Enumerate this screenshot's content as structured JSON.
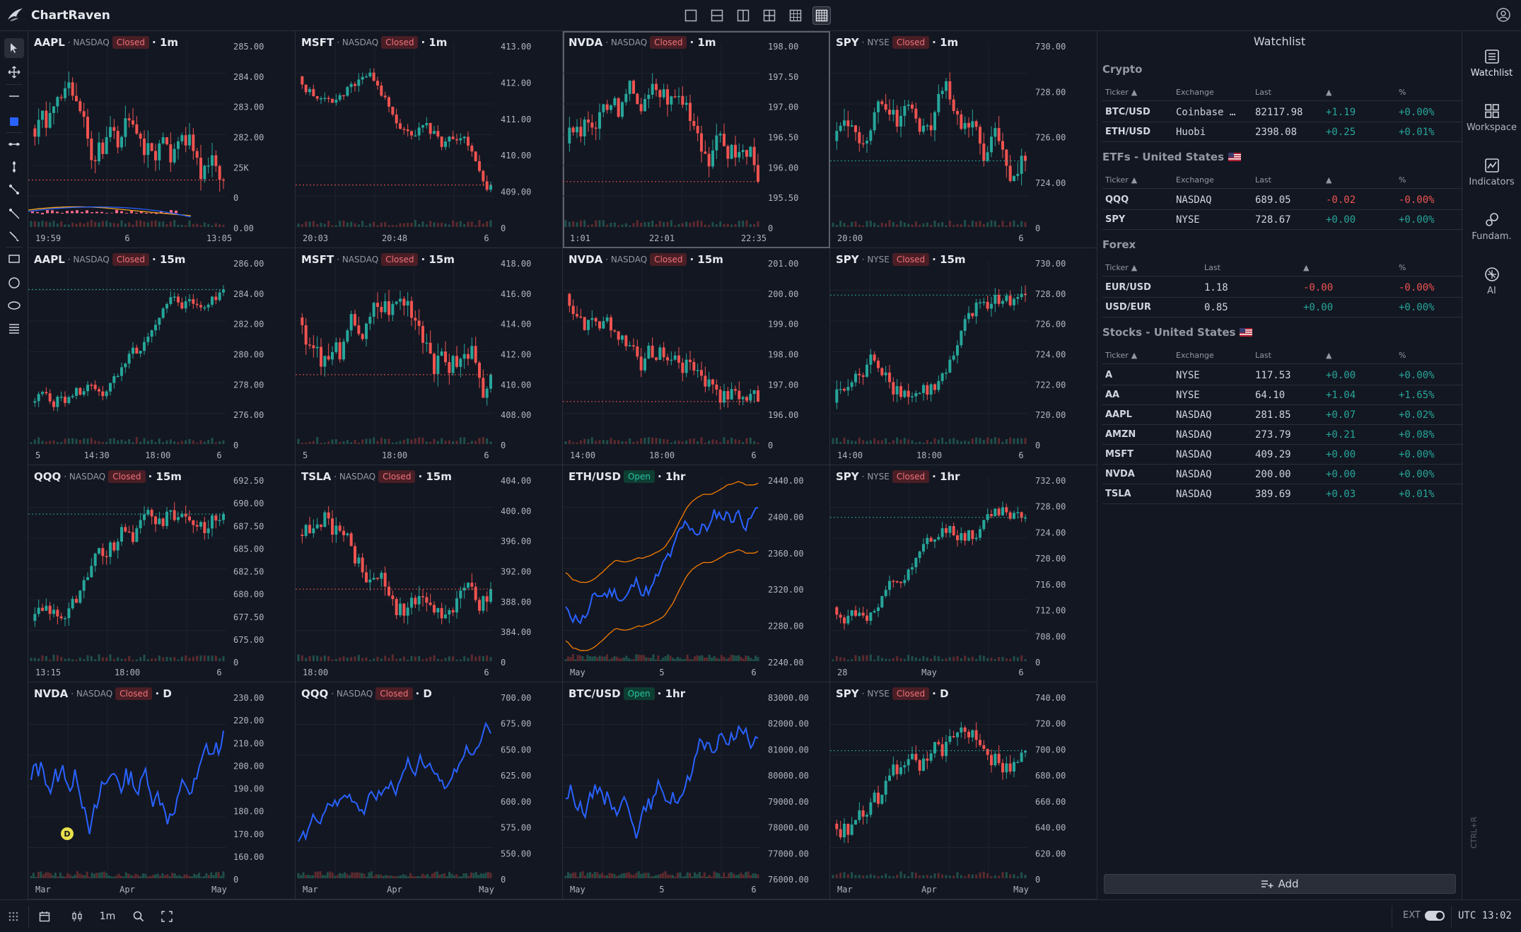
{
  "app": {
    "name": "ChartRaven"
  },
  "layouts": [
    "1x1",
    "2-rows",
    "2-cols",
    "2x2",
    "3x3",
    "4x4"
  ],
  "left_tools": [
    "cursor-icon",
    "move-icon",
    "line-icon",
    "color-swatch-icon",
    "horizontal-line-icon",
    "vertical-line-icon",
    "trend-line-icon",
    "ray-icon",
    "brush-icon",
    "rectangle-icon",
    "circle-icon",
    "ellipse-icon",
    "menu-lines-icon"
  ],
  "charts": [
    {
      "sym": "AAPL",
      "ex": "NASDAQ",
      "status": "Closed",
      "tf": "1m",
      "type": "candle",
      "yticks": [
        "285.00",
        "284.00",
        "283.00",
        "282.00",
        "25K",
        "0",
        "0.00"
      ],
      "xticks": [
        "19:59",
        "6",
        "13:05"
      ],
      "seed": 1,
      "trend": -0.8,
      "extra": "macd"
    },
    {
      "sym": "MSFT",
      "ex": "NASDAQ",
      "status": "Closed",
      "tf": "1m",
      "type": "candle",
      "yticks": [
        "413.00",
        "412.00",
        "411.00",
        "410.00",
        "409.00",
        "0"
      ],
      "xticks": [
        "20:03",
        "20:48",
        "6"
      ],
      "seed": 2,
      "trend": -1
    },
    {
      "sym": "NVDA",
      "ex": "NASDAQ",
      "status": "Closed",
      "tf": "1m",
      "type": "candle",
      "yticks": [
        "198.00",
        "197.50",
        "197.00",
        "196.50",
        "196.00",
        "195.50",
        "0"
      ],
      "xticks": [
        "1:01",
        "22:01",
        "22:35"
      ],
      "seed": 3,
      "trend": -0.2,
      "selected": true
    },
    {
      "sym": "SPY",
      "ex": "NYSE",
      "status": "Closed",
      "tf": "1m",
      "type": "candle",
      "yticks": [
        "730.00",
        "728.00",
        "726.00",
        "724.00",
        "0"
      ],
      "xticks": [
        "20:00",
        "6"
      ],
      "seed": 4,
      "trend": 0.6
    },
    {
      "sym": "AAPL",
      "ex": "NASDAQ",
      "status": "Closed",
      "tf": "15m",
      "type": "candle",
      "yticks": [
        "286.00",
        "284.00",
        "282.00",
        "280.00",
        "278.00",
        "276.00",
        "0"
      ],
      "xticks": [
        "5",
        "14:30",
        "18:00",
        "6"
      ],
      "seed": 5,
      "trend": 1
    },
    {
      "sym": "MSFT",
      "ex": "NASDAQ",
      "status": "Closed",
      "tf": "15m",
      "type": "candle",
      "yticks": [
        "418.00",
        "416.00",
        "414.00",
        "412.00",
        "410.00",
        "408.00",
        "0"
      ],
      "xticks": [
        "5",
        "18:00",
        "6"
      ],
      "seed": 6,
      "trend": -0.3
    },
    {
      "sym": "NVDA",
      "ex": "NASDAQ",
      "status": "Closed",
      "tf": "15m",
      "type": "candle",
      "yticks": [
        "201.00",
        "200.00",
        "199.00",
        "198.00",
        "197.00",
        "196.00",
        "0"
      ],
      "xticks": [
        "14:00",
        "18:00",
        "6"
      ],
      "seed": 7,
      "trend": -0.5
    },
    {
      "sym": "SPY",
      "ex": "NYSE",
      "status": "Closed",
      "tf": "15m",
      "type": "candle",
      "yticks": [
        "730.00",
        "728.00",
        "726.00",
        "724.00",
        "722.00",
        "720.00",
        "0"
      ],
      "xticks": [
        "14:00",
        "18:00",
        "6"
      ],
      "seed": 8,
      "trend": 1
    },
    {
      "sym": "QQQ",
      "ex": "NASDAQ",
      "status": "Closed",
      "tf": "15m",
      "type": "candle",
      "yticks": [
        "692.50",
        "690.00",
        "687.50",
        "685.00",
        "682.50",
        "680.00",
        "677.50",
        "675.00",
        "0"
      ],
      "xticks": [
        "13:15",
        "18:00",
        "6"
      ],
      "seed": 9,
      "trend": 1
    },
    {
      "sym": "TSLA",
      "ex": "NASDAQ",
      "status": "Closed",
      "tf": "15m",
      "type": "candle",
      "yticks": [
        "404.00",
        "400.00",
        "396.00",
        "392.00",
        "388.00",
        "384.00",
        "0"
      ],
      "xticks": [
        "18:00",
        "6"
      ],
      "seed": 10,
      "trend": -0.8
    },
    {
      "sym": "ETH/USD",
      "ex": "",
      "status": "Open",
      "tf": "1hr",
      "type": "line",
      "bands": true,
      "yticks": [
        "2440.00",
        "2400.00",
        "2360.00",
        "2320.00",
        "2280.00",
        "2240.00"
      ],
      "xticks": [
        "May",
        "5",
        "6"
      ],
      "seed": 11,
      "trend": 1
    },
    {
      "sym": "SPY",
      "ex": "NYSE",
      "status": "Closed",
      "tf": "1hr",
      "type": "candle",
      "yticks": [
        "732.00",
        "728.00",
        "724.00",
        "720.00",
        "716.00",
        "712.00",
        "708.00",
        "0"
      ],
      "xticks": [
        "28",
        "May",
        "6"
      ],
      "seed": 12,
      "trend": 0.8
    },
    {
      "sym": "NVDA",
      "ex": "NASDAQ",
      "status": "Closed",
      "tf": "D",
      "type": "line",
      "yticks": [
        "230.00",
        "220.00",
        "210.00",
        "200.00",
        "190.00",
        "180.00",
        "170.00",
        "160.00",
        "0"
      ],
      "xticks": [
        "Mar",
        "Apr",
        "May"
      ],
      "seed": 13,
      "trend": 0.4,
      "dmarker": "D"
    },
    {
      "sym": "QQQ",
      "ex": "NASDAQ",
      "status": "Closed",
      "tf": "D",
      "type": "line",
      "yticks": [
        "700.00",
        "675.00",
        "650.00",
        "625.00",
        "600.00",
        "575.00",
        "550.00",
        "0"
      ],
      "xticks": [
        "Mar",
        "Apr",
        "May"
      ],
      "seed": 14,
      "trend": 0.9
    },
    {
      "sym": "BTC/USD",
      "ex": "",
      "status": "Open",
      "tf": "1hr",
      "type": "line",
      "yticks": [
        "83000.00",
        "82000.00",
        "81000.00",
        "80000.00",
        "79000.00",
        "78000.00",
        "77000.00",
        "76000.00"
      ],
      "xticks": [
        "May",
        "5",
        "6"
      ],
      "seed": 15,
      "trend": 1
    },
    {
      "sym": "SPY",
      "ex": "NYSE",
      "status": "Closed",
      "tf": "D",
      "type": "candle",
      "yticks": [
        "740.00",
        "720.00",
        "700.00",
        "680.00",
        "660.00",
        "640.00",
        "620.00",
        "0"
      ],
      "xticks": [
        "Mar",
        "Apr",
        "May"
      ],
      "seed": 16,
      "trend": 0.5
    }
  ],
  "watchlist": {
    "title": "Watchlist",
    "add_label": "Add",
    "sections": [
      {
        "name": "Crypto",
        "flag": false,
        "headers": [
          "Ticker",
          "Exchange",
          "Last",
          "",
          "%"
        ],
        "rows": [
          {
            "ticker": "BTC/USD",
            "exchange": "Coinbase …",
            "last": "82117.98",
            "chg": "+1.19",
            "pct": "+0.00%",
            "dir": "pos"
          },
          {
            "ticker": "ETH/USD",
            "exchange": "Huobi",
            "last": "2398.08",
            "chg": "+0.25",
            "pct": "+0.01%",
            "dir": "pos"
          }
        ]
      },
      {
        "name": "ETFs - United States",
        "flag": true,
        "headers": [
          "Ticker",
          "Exchange",
          "Last",
          "",
          "%"
        ],
        "rows": [
          {
            "ticker": "QQQ",
            "exchange": "NASDAQ",
            "last": "689.05",
            "chg": "-0.02",
            "pct": "-0.00%",
            "dir": "neg"
          },
          {
            "ticker": "SPY",
            "exchange": "NYSE",
            "last": "728.67",
            "chg": "+0.00",
            "pct": "+0.00%",
            "dir": "pos"
          }
        ]
      },
      {
        "name": "Forex",
        "flag": false,
        "headers": [
          "Ticker",
          "Last",
          "",
          "%"
        ],
        "rows": [
          {
            "ticker": "EUR/USD",
            "last": "1.18",
            "chg": "-0.00",
            "pct": "-0.00%",
            "dir": "neg"
          },
          {
            "ticker": "USD/EUR",
            "last": "0.85",
            "chg": "+0.00",
            "pct": "+0.00%",
            "dir": "pos"
          }
        ]
      },
      {
        "name": "Stocks - United States",
        "flag": true,
        "headers": [
          "Ticker",
          "Exchange",
          "Last",
          "",
          "%"
        ],
        "rows": [
          {
            "ticker": "A",
            "exchange": "NYSE",
            "last": "117.53",
            "chg": "+0.00",
            "pct": "+0.00%",
            "dir": "pos"
          },
          {
            "ticker": "AA",
            "exchange": "NYSE",
            "last": "64.10",
            "chg": "+1.04",
            "pct": "+1.65%",
            "dir": "pos"
          },
          {
            "ticker": "AAPL",
            "exchange": "NASDAQ",
            "last": "281.85",
            "chg": "+0.07",
            "pct": "+0.02%",
            "dir": "pos"
          },
          {
            "ticker": "AMZN",
            "exchange": "NASDAQ",
            "last": "273.79",
            "chg": "+0.21",
            "pct": "+0.08%",
            "dir": "pos"
          },
          {
            "ticker": "MSFT",
            "exchange": "NASDAQ",
            "last": "409.29",
            "chg": "+0.00",
            "pct": "+0.00%",
            "dir": "pos"
          },
          {
            "ticker": "NVDA",
            "exchange": "NASDAQ",
            "last": "200.00",
            "chg": "+0.00",
            "pct": "+0.00%",
            "dir": "pos"
          },
          {
            "ticker": "TSLA",
            "exchange": "NASDAQ",
            "last": "389.69",
            "chg": "+0.03",
            "pct": "+0.01%",
            "dir": "pos"
          }
        ]
      }
    ]
  },
  "right_panel": [
    {
      "label": "Watchlist",
      "icon": "watchlist-icon"
    },
    {
      "label": "Workspace",
      "icon": "workspace-icon"
    },
    {
      "label": "Indicators",
      "icon": "indicators-icon"
    },
    {
      "label": "Fundam.",
      "icon": "fundamentals-icon"
    },
    {
      "label": "AI",
      "icon": "ai-icon"
    }
  ],
  "shortcut_hint": "CTRL+R",
  "bottom": {
    "interval": "1m",
    "ext_label": "EXT",
    "clock": "UTC 13:02"
  },
  "colors": {
    "bg": "#131722",
    "up": "#26a69a",
    "down": "#ef5350",
    "line": "#2962ff",
    "band": "#f57c00",
    "grid": "#1e222d"
  }
}
